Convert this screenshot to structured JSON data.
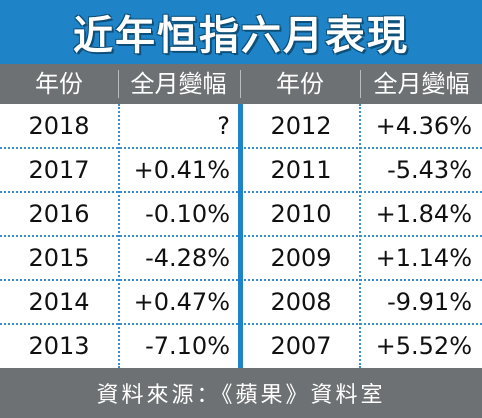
{
  "title": "近年恒指六月表現",
  "header": {
    "year_label_left": "年份",
    "change_label_left": "全月變幅",
    "year_label_right": "年份",
    "change_label_right": "全月變幅"
  },
  "chart_data": {
    "type": "table",
    "title": "近年恒指六月表現",
    "columns": [
      "年份",
      "全月變幅"
    ],
    "left_rows": [
      {
        "year": "2018",
        "change": "?"
      },
      {
        "year": "2017",
        "change": "+0.41%"
      },
      {
        "year": "2016",
        "change": "-0.10%"
      },
      {
        "year": "2015",
        "change": "-4.28%"
      },
      {
        "year": "2014",
        "change": "+0.47%"
      },
      {
        "year": "2013",
        "change": "-7.10%"
      }
    ],
    "right_rows": [
      {
        "year": "2012",
        "change": "+4.36%"
      },
      {
        "year": "2011",
        "change": "-5.43%"
      },
      {
        "year": "2010",
        "change": "+1.84%"
      },
      {
        "year": "2009",
        "change": "+1.14%"
      },
      {
        "year": "2008",
        "change": "-9.91%"
      },
      {
        "year": "2007",
        "change": "+5.52%"
      }
    ]
  },
  "footer": {
    "source": "資料來源：《蘋果》資料室"
  },
  "colors": {
    "title_bg": "#1f84c7",
    "header_bg": "#6d7173",
    "divider": "#3a8fd0"
  }
}
